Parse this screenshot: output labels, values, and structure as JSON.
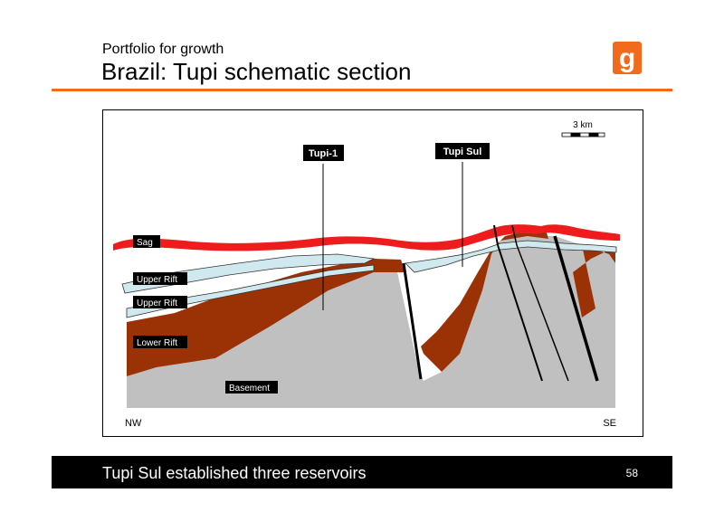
{
  "header": {
    "subtitle": "Portfolio for growth",
    "title": "Brazil: Tupi schematic section",
    "logo_letter": "g"
  },
  "colors": {
    "accent": "#f26b1d",
    "sag": "#ee1c1c",
    "upper_rift": "#cfe9ef",
    "lower_rift": "#9a3205",
    "basement": "#c0c0c0"
  },
  "diagram": {
    "scale_label": "3 km",
    "wells": [
      {
        "label": "Tupi-1"
      },
      {
        "label": "Tupi Sul"
      }
    ],
    "layers": {
      "sag": "Sag",
      "upper_rift_1": "Upper Rift",
      "upper_rift_2": "Upper Rift",
      "lower_rift": "Lower Rift",
      "basement": "Basement"
    },
    "orientation": {
      "left": "NW",
      "right": "SE"
    }
  },
  "footer": {
    "text": "Tupi Sul established three reservoirs",
    "page_number": "58"
  }
}
